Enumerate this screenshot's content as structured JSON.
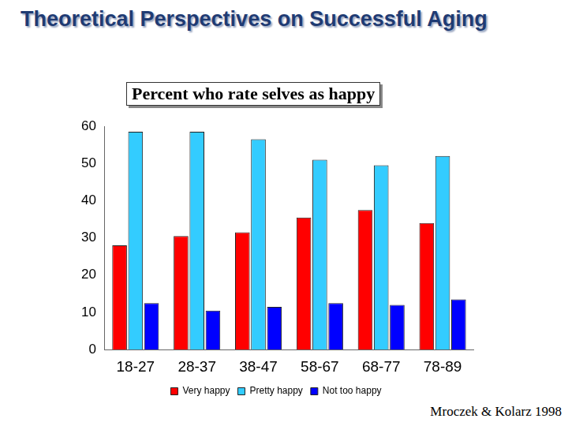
{
  "header": {
    "title": "Theoretical Perspectives on Successful Aging"
  },
  "chart_data": {
    "type": "bar",
    "title": "Percent who rate selves as happy",
    "annotations": [
      "Mroczek & Kolarz 1998"
    ],
    "categories": [
      "18-27",
      "28-37",
      "38-47",
      "58-67",
      "68-77",
      "78-89"
    ],
    "series": [
      {
        "name": "Very happy",
        "color": "#ff0000",
        "values": [
          28,
          30.5,
          31.5,
          35.5,
          37.5,
          34
        ]
      },
      {
        "name": "Pretty happy",
        "color": "#33ccff",
        "values": [
          58.5,
          58.5,
          56.5,
          51,
          49.5,
          52
        ]
      },
      {
        "name": "Not too happy",
        "color": "#0000ff",
        "values": [
          12.5,
          10.5,
          11.5,
          12.5,
          12,
          13.5
        ]
      }
    ],
    "ylim": [
      0,
      60
    ],
    "yticks": [
      0,
      10,
      20,
      30,
      40,
      50,
      60
    ],
    "grid": false,
    "legend": "bottom"
  }
}
